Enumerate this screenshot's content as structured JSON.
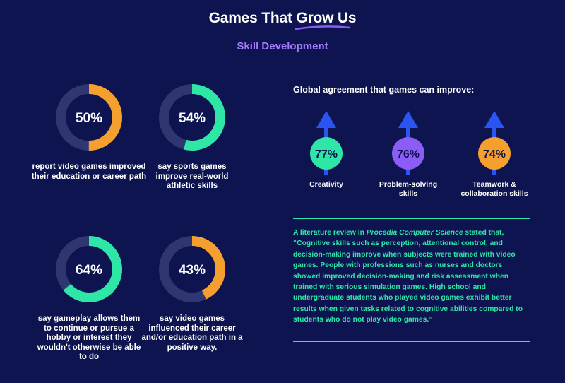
{
  "header": {
    "title": "Games That Grow Us",
    "subtitle": "Skill Development"
  },
  "colors": {
    "background": "#0d1450",
    "track": "#2f3670",
    "orange": "#f5a02e",
    "green": "#2ee6a6",
    "purple": "#8b5cf6",
    "blue": "#2a55f0",
    "subtitle": "#a77bff"
  },
  "donuts": [
    {
      "value_label": "50%",
      "percent": 50,
      "color": "orange",
      "caption": "report video games improved their education or career path"
    },
    {
      "value_label": "54%",
      "percent": 54,
      "color": "green",
      "caption": "say sports games improve real-world athletic skills"
    },
    {
      "value_label": "64%",
      "percent": 64,
      "color": "green",
      "caption": "say gameplay allows them to continue or pursue a hobby or interest they wouldn't otherwise be able to do"
    },
    {
      "value_label": "43%",
      "percent": 43,
      "color": "orange",
      "caption": "say video games influenced their career and/or education path in a positive way."
    }
  ],
  "global": {
    "heading": "Global agreement that games can improve:",
    "items": [
      {
        "value_label": "77%",
        "label": "Creativity",
        "color": "green"
      },
      {
        "value_label": "76%",
        "label": "Problem-solving skills",
        "color": "purple"
      },
      {
        "value_label": "74%",
        "label": "Teamwork & collaboration skills",
        "color": "orange"
      }
    ]
  },
  "quote": {
    "intro": "A literature review in ",
    "journal": "Procedia Computer Science",
    "body": " stated that, “Cognitive skills such as perception, attentional control, and decision-making improve when subjects were trained with video games. People with professions such as nurses and doctors showed improved decision-making and risk assessment when trained with serious simulation games. High school and undergraduate students who played video games exhibit better results when given tasks related to cognitive abilities compared to students who do not play video games.”"
  }
}
